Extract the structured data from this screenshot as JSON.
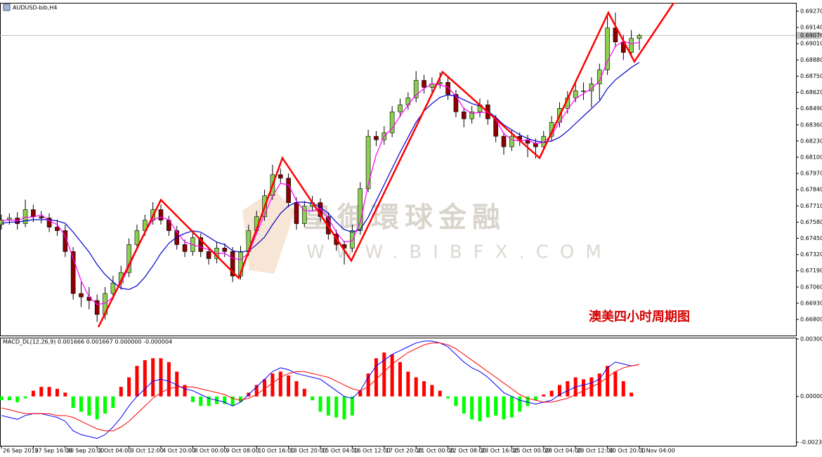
{
  "chart_data": {
    "type": "candlestick",
    "title": "AUDUSD-bib,H4",
    "annotation": "澳美四小时周期图",
    "watermark": [
      "皇御環球金融",
      "WWW.BIBFX.COM"
    ],
    "categories": [
      "26 Sep 2019",
      null,
      null,
      null,
      "27 Sep 16:00",
      null,
      null,
      null,
      "30 Sep 20:00",
      null,
      null,
      null,
      "2 Oct 04:00",
      null,
      null,
      null,
      "3 Oct 12:00",
      null,
      null,
      null,
      "4 Oct 20:00",
      null,
      null,
      null,
      "8 Oct 00:00",
      null,
      null,
      null,
      "9 Oct 08:00",
      null,
      null,
      null,
      "10 Oct 16:00",
      null,
      null,
      null,
      "13 Oct 20:00",
      null,
      null,
      null,
      "15 Oct 04:00",
      null,
      null,
      null,
      "16 Oct 12:00",
      null,
      null,
      null,
      "17 Oct 20:00",
      null,
      null,
      null,
      "21 Oct 00:00",
      null,
      null,
      null,
      "22 Oct 08:00",
      null,
      null,
      null,
      "23 Oct 16:00",
      null,
      null,
      null,
      "25 Oct 00:00",
      null,
      null,
      null,
      "28 Oct 04:00",
      null,
      null,
      null,
      "29 Oct 12:00",
      null,
      null,
      null,
      "30 Oct 20:00",
      null,
      null,
      null,
      "1 Nov 04:00"
    ],
    "candles": [
      [
        0.6756,
        0.6764,
        0.6752,
        0.67596
      ],
      [
        0.67596,
        0.6765,
        0.6756,
        0.67613
      ],
      [
        0.67613,
        0.6766,
        0.6752,
        0.67568
      ],
      [
        0.67568,
        0.6776,
        0.6754,
        0.6768
      ],
      [
        0.6768,
        0.6772,
        0.6758,
        0.67624
      ],
      [
        0.67624,
        0.6767,
        0.6757,
        0.67613
      ],
      [
        0.67613,
        0.6765,
        0.675,
        0.6754
      ],
      [
        0.6754,
        0.676,
        0.6747,
        0.67512
      ],
      [
        0.67512,
        0.6756,
        0.673,
        0.67344
      ],
      [
        0.67344,
        0.6738,
        0.6696,
        0.67008
      ],
      [
        0.67008,
        0.671,
        0.669,
        0.6698
      ],
      [
        0.6698,
        0.6706,
        0.6688,
        0.66952
      ],
      [
        0.66952,
        0.67,
        0.6678,
        0.6684
      ],
      [
        0.6684,
        0.6706,
        0.668,
        0.67008
      ],
      [
        0.67008,
        0.6715,
        0.6696,
        0.67092
      ],
      [
        0.67092,
        0.6723,
        0.6704,
        0.67176
      ],
      [
        0.67176,
        0.6745,
        0.6714,
        0.674
      ],
      [
        0.674,
        0.6756,
        0.6736,
        0.67512
      ],
      [
        0.67512,
        0.6764,
        0.6747,
        0.67596
      ],
      [
        0.67596,
        0.6774,
        0.6756,
        0.6768
      ],
      [
        0.6768,
        0.6772,
        0.6756,
        0.67596
      ],
      [
        0.67596,
        0.6763,
        0.6747,
        0.67512
      ],
      [
        0.67512,
        0.6755,
        0.6736,
        0.674
      ],
      [
        0.674,
        0.6744,
        0.673,
        0.67344
      ],
      [
        0.67344,
        0.675,
        0.6731,
        0.67456
      ],
      [
        0.67456,
        0.6749,
        0.673,
        0.67344
      ],
      [
        0.67344,
        0.6738,
        0.6724,
        0.67288
      ],
      [
        0.67288,
        0.6742,
        0.6725,
        0.67372
      ],
      [
        0.67372,
        0.6741,
        0.673,
        0.67344
      ],
      [
        0.67344,
        0.6738,
        0.671,
        0.67148
      ],
      [
        0.67148,
        0.6739,
        0.6712,
        0.67344
      ],
      [
        0.67344,
        0.6756,
        0.6731,
        0.67512
      ],
      [
        0.67512,
        0.6767,
        0.6748,
        0.67624
      ],
      [
        0.67624,
        0.6784,
        0.6759,
        0.67792
      ],
      [
        0.67792,
        0.6804,
        0.6776,
        0.6796
      ],
      [
        0.6796,
        0.6801,
        0.6789,
        0.67932
      ],
      [
        0.67932,
        0.6797,
        0.677,
        0.67736
      ],
      [
        0.67736,
        0.6778,
        0.6752,
        0.67568
      ],
      [
        0.67568,
        0.6775,
        0.6754,
        0.67708
      ],
      [
        0.67708,
        0.6779,
        0.6767,
        0.67736
      ],
      [
        0.67736,
        0.6777,
        0.6758,
        0.67624
      ],
      [
        0.67624,
        0.6766,
        0.6744,
        0.67484
      ],
      [
        0.67484,
        0.6752,
        0.6735,
        0.674
      ],
      [
        0.674,
        0.6743,
        0.6724,
        0.67372
      ],
      [
        0.67372,
        0.6756,
        0.6734,
        0.67512
      ],
      [
        0.67512,
        0.679,
        0.6748,
        0.67848
      ],
      [
        0.67848,
        0.6832,
        0.6782,
        0.68268
      ],
      [
        0.68268,
        0.6831,
        0.6819,
        0.6824
      ],
      [
        0.6824,
        0.6835,
        0.682,
        0.68296
      ],
      [
        0.68296,
        0.6851,
        0.6826,
        0.68464
      ],
      [
        0.68464,
        0.6857,
        0.6842,
        0.6852
      ],
      [
        0.6852,
        0.6862,
        0.6848,
        0.68576
      ],
      [
        0.68576,
        0.6879,
        0.6854,
        0.68716
      ],
      [
        0.68716,
        0.6876,
        0.6861,
        0.6866
      ],
      [
        0.6866,
        0.6874,
        0.6862,
        0.68688
      ],
      [
        0.68688,
        0.6878,
        0.6865,
        0.687
      ],
      [
        0.687,
        0.6874,
        0.6856,
        0.68604
      ],
      [
        0.68604,
        0.6864,
        0.6842,
        0.68464
      ],
      [
        0.68464,
        0.685,
        0.6834,
        0.68408
      ],
      [
        0.68408,
        0.6851,
        0.6837,
        0.68464
      ],
      [
        0.68464,
        0.6857,
        0.6842,
        0.6852
      ],
      [
        0.6852,
        0.6856,
        0.6836,
        0.68408
      ],
      [
        0.68408,
        0.6844,
        0.6822,
        0.68268
      ],
      [
        0.68268,
        0.683,
        0.6812,
        0.68184
      ],
      [
        0.68184,
        0.6832,
        0.6815,
        0.68268
      ],
      [
        0.68268,
        0.683,
        0.6819,
        0.6824
      ],
      [
        0.6824,
        0.6828,
        0.681,
        0.68212
      ],
      [
        0.68212,
        0.6825,
        0.6809,
        0.68184
      ],
      [
        0.68184,
        0.6831,
        0.6815,
        0.68268
      ],
      [
        0.68268,
        0.6843,
        0.6823,
        0.6838
      ],
      [
        0.6838,
        0.6854,
        0.6834,
        0.68492
      ],
      [
        0.68492,
        0.6863,
        0.6845,
        0.68576
      ],
      [
        0.68576,
        0.6869,
        0.6854,
        0.68632
      ],
      [
        0.68632,
        0.687,
        0.6856,
        0.68632
      ],
      [
        0.68632,
        0.6874,
        0.685,
        0.68688
      ],
      [
        0.68688,
        0.6885,
        0.6856,
        0.688
      ],
      [
        0.688,
        0.6923,
        0.6876,
        0.69136
      ],
      [
        0.69136,
        0.6926,
        0.6898,
        0.69024
      ],
      [
        0.69024,
        0.6908,
        0.6888,
        0.6894
      ],
      [
        0.6894,
        0.6912,
        0.689,
        0.69052
      ],
      [
        0.69052,
        0.6909,
        0.6896,
        0.69076
      ]
    ],
    "up_color": "#8cd04f",
    "down_color": "#8b0000",
    "ma_fast": {
      "color": "#ff00ff",
      "values": [
        0.6759,
        0.676,
        0.6759,
        0.6762,
        0.6762,
        0.6764,
        0.6759,
        0.6756,
        0.6747,
        0.6729,
        0.6711,
        0.6698,
        0.6692,
        0.6693,
        0.6698,
        0.6709,
        0.6722,
        0.6736,
        0.675,
        0.676,
        0.6762,
        0.676,
        0.675,
        0.6742,
        0.674,
        0.6738,
        0.6736,
        0.6733,
        0.6733,
        0.6729,
        0.6728,
        0.6733,
        0.6749,
        0.6764,
        0.6779,
        0.6789,
        0.6788,
        0.6775,
        0.6767,
        0.6767,
        0.6769,
        0.6761,
        0.675,
        0.6742,
        0.6743,
        0.6758,
        0.6788,
        0.6812,
        0.6827,
        0.6833,
        0.6843,
        0.6852,
        0.686,
        0.6865,
        0.6869,
        0.6868,
        0.6866,
        0.6859,
        0.6849,
        0.6845,
        0.6846,
        0.6846,
        0.684,
        0.6829,
        0.6824,
        0.6823,
        0.6824,
        0.6821,
        0.6822,
        0.6828,
        0.6838,
        0.6848,
        0.6857,
        0.6861,
        0.6865,
        0.6871,
        0.6887,
        0.6899,
        0.6903,
        0.6901,
        0.6902
      ]
    },
    "ma_slow": {
      "color": "#0000cd",
      "values": [
        0.6757,
        0.6758,
        0.6758,
        0.6759,
        0.676,
        0.676,
        0.676,
        0.6759,
        0.6757,
        0.675,
        0.6742,
        0.6734,
        0.6724,
        0.6716,
        0.671,
        0.6705,
        0.6704,
        0.6707,
        0.6714,
        0.6723,
        0.6733,
        0.6741,
        0.6746,
        0.6749,
        0.6751,
        0.675,
        0.6746,
        0.6742,
        0.674,
        0.6735,
        0.6734,
        0.6735,
        0.674,
        0.6746,
        0.6756,
        0.6765,
        0.6771,
        0.6774,
        0.6774,
        0.6773,
        0.677,
        0.6765,
        0.6758,
        0.6752,
        0.675,
        0.6752,
        0.6762,
        0.6775,
        0.6788,
        0.6801,
        0.6814,
        0.6826,
        0.6838,
        0.6847,
        0.6853,
        0.6858,
        0.686,
        0.6859,
        0.6856,
        0.6853,
        0.6851,
        0.6847,
        0.6842,
        0.6836,
        0.6832,
        0.6828,
        0.6825,
        0.6823,
        0.6822,
        0.6823,
        0.6826,
        0.6831,
        0.6837,
        0.6843,
        0.6849,
        0.6855,
        0.6865,
        0.6872,
        0.6877,
        0.6882,
        0.6886
      ]
    },
    "ylim": [
      0.66671,
      0.69332
    ],
    "yticks": [
      {
        "value": 0.6927,
        "label": "0.69270"
      },
      {
        "value": 0.6914,
        "label": "0.69140"
      },
      {
        "value": 0.6901,
        "label": "0.69010"
      },
      {
        "value": 0.6888,
        "label": "0.68880"
      },
      {
        "value": 0.6875,
        "label": "0.68750"
      },
      {
        "value": 0.6862,
        "label": "0.68620"
      },
      {
        "value": 0.6849,
        "label": "0.68490"
      },
      {
        "value": 0.6836,
        "label": "0.68360"
      },
      {
        "value": 0.6823,
        "label": "0.68230"
      },
      {
        "value": 0.681,
        "label": "0.68100"
      },
      {
        "value": 0.6797,
        "label": "0.67970"
      },
      {
        "value": 0.6784,
        "label": "0.67840"
      },
      {
        "value": 0.6771,
        "label": "0.67710"
      },
      {
        "value": 0.6758,
        "label": "0.67580"
      },
      {
        "value": 0.6745,
        "label": "0.67450"
      },
      {
        "value": 0.6732,
        "label": "0.67320"
      },
      {
        "value": 0.6719,
        "label": "0.67190"
      },
      {
        "value": 0.6706,
        "label": "0.67060"
      },
      {
        "value": 0.6693,
        "label": "0.66930"
      },
      {
        "value": 0.668,
        "label": "0.66800"
      }
    ],
    "last_price": 0.69076,
    "trendline": {
      "color": "#ff0000",
      "x": [
        12.16,
        20.0,
        29.78,
        35.24,
        43.88,
        55.33,
        67.49,
        76.12,
        79.38,
        84.85
      ],
      "y": [
        0.66739,
        0.67758,
        0.67131,
        0.68094,
        0.67271,
        0.68783,
        0.68094,
        0.69259,
        0.68867,
        0.69388
      ]
    },
    "macd": {
      "title": "MACD_DL(12,26,9) 0.001666 0.001667 0.000000 -0.000004",
      "ylim": [
        -0.002399,
        0.003004
      ],
      "yticks": [
        0.003004,
        {
          "value": 0,
          "label": "0.000000"
        },
        -0.002399
      ],
      "up_color": "#ff0000",
      "down_color": "#00ff00",
      "macd_color": "#0000ff",
      "signal_color": "#ff0000",
      "histogram": [
        -0.0002,
        -0.0002,
        -0.0003,
        -0.0001,
        0.0003,
        0.0005,
        0.0005,
        0.0004,
        0.0002,
        -0.0006,
        -0.0008,
        -0.001,
        -0.0012,
        -0.0009,
        -0.0006,
        0.0005,
        0.001,
        0.0016,
        0.0019,
        0.002,
        0.002,
        0.0018,
        0.0013,
        0.0006,
        -0.0003,
        -0.0005,
        -0.0005,
        -0.0004,
        -0.0004,
        -0.0005,
        -0.0003,
        0.0002,
        0.0006,
        0.0009,
        0.0012,
        0.0013,
        0.0011,
        0.0008,
        0.0004,
        -0.0002,
        -0.0008,
        -0.001,
        -0.0011,
        -0.0012,
        -0.001,
        0.0003,
        0.0012,
        0.002,
        0.0023,
        0.0022,
        0.0018,
        0.0013,
        0.001,
        0.0008,
        0.0006,
        0.0003,
        -0.0001,
        -0.0005,
        -0.0009,
        -0.0012,
        -0.0013,
        -0.0011,
        -0.001,
        -0.0012,
        -0.0011,
        -0.0008,
        -0.0005,
        -0.0002,
        0.0001,
        0.0003,
        0.0006,
        0.0008,
        0.001,
        0.0009,
        0.001,
        0.0012,
        0.0016,
        0.0013,
        0.0008,
        0.0002,
        0.0
      ],
      "macd": [
        -0.001,
        -0.0011,
        -0.0012,
        -0.001,
        -0.0009,
        -0.0009,
        -0.001,
        -0.0011,
        -0.0013,
        -0.0018,
        -0.002,
        -0.0021,
        -0.0022,
        -0.002,
        -0.0016,
        -0.0011,
        -0.0005,
        0.0,
        0.0004,
        0.0008,
        0.0009,
        0.0008,
        0.0006,
        0.0004,
        0.0003,
        0.0001,
        -0.0001,
        -0.0002,
        -0.0003,
        -0.0005,
        -0.0003,
        0.0001,
        0.0005,
        0.0009,
        0.0013,
        0.0015,
        0.0014,
        0.0012,
        0.0011,
        0.001,
        0.0009,
        0.0006,
        0.0003,
        0.0,
        -0.0001,
        0.0003,
        0.001,
        0.0016,
        0.0019,
        0.0022,
        0.0024,
        0.0026,
        0.0028,
        0.0029,
        0.0029,
        0.0028,
        0.0026,
        0.0022,
        0.0018,
        0.0015,
        0.0013,
        0.001,
        0.0006,
        0.0002,
        0.0,
        -0.0002,
        -0.0003,
        -0.0004,
        -0.0003,
        -0.0002,
        0.0001,
        0.0003,
        0.0005,
        0.0006,
        0.0007,
        0.0009,
        0.0015,
        0.0018,
        0.0017,
        0.0016,
        0.001666
      ],
      "signal": [
        -0.0006,
        -0.0007,
        -0.0008,
        -0.0009,
        -0.0009,
        -0.0009,
        -0.0009,
        -0.001,
        -0.001,
        -0.0011,
        -0.0013,
        -0.0015,
        -0.0017,
        -0.0018,
        -0.0018,
        -0.0016,
        -0.0013,
        -0.0009,
        -0.0005,
        -0.0001,
        0.0002,
        0.0004,
        0.0005,
        0.0005,
        0.0005,
        0.0004,
        0.0003,
        0.0002,
        0.0001,
        -0.0001,
        -0.0002,
        -0.0001,
        0.0001,
        0.0004,
        0.0007,
        0.001,
        0.0012,
        0.0013,
        0.0013,
        0.0012,
        0.0011,
        0.001,
        0.0008,
        0.0006,
        0.0004,
        0.0003,
        0.0005,
        0.0009,
        0.0013,
        0.0017,
        0.002,
        0.0023,
        0.0025,
        0.0027,
        0.0028,
        0.0028,
        0.0027,
        0.0025,
        0.0022,
        0.0019,
        0.0016,
        0.0013,
        0.001,
        0.0007,
        0.0004,
        0.0001,
        -0.0001,
        -0.0002,
        -0.0003,
        -0.0003,
        -0.0002,
        -0.0001,
        0.0001,
        0.0003,
        0.0005,
        0.0007,
        0.001,
        0.0013,
        0.0015,
        0.0016,
        0.001667
      ]
    }
  }
}
